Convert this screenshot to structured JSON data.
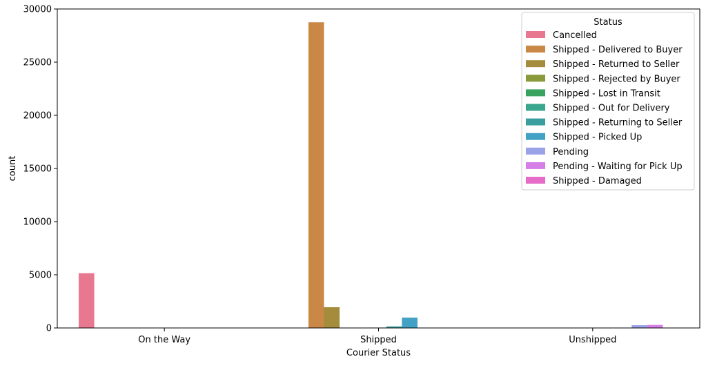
{
  "chart_data": {
    "type": "bar",
    "title": "",
    "xlabel": "Courier Status",
    "ylabel": "count",
    "ylim": [
      0,
      30000
    ],
    "yticks": [
      0,
      5000,
      10000,
      15000,
      20000,
      25000,
      30000
    ],
    "categories": [
      "On the Way",
      "Shipped",
      "Unshipped"
    ],
    "grid": false,
    "legend": {
      "title": "Status",
      "placement": "top-right"
    },
    "series": [
      {
        "name": "Cancelled",
        "color": "#e8788f",
        "values": [
          5150,
          0,
          0
        ]
      },
      {
        "name": "Shipped - Delivered to Buyer",
        "color": "#c98845",
        "values": [
          0,
          28750,
          0
        ]
      },
      {
        "name": "Shipped - Returned to Seller",
        "color": "#a58c3c",
        "values": [
          0,
          1950,
          0
        ]
      },
      {
        "name": "Shipped - Rejected by Buyer",
        "color": "#8a9a3b",
        "values": [
          0,
          10,
          0
        ]
      },
      {
        "name": "Shipped - Lost in Transit",
        "color": "#3aa35f",
        "values": [
          0,
          5,
          0
        ]
      },
      {
        "name": "Shipped - Out for Delivery",
        "color": "#3aa68e",
        "values": [
          0,
          35,
          0
        ]
      },
      {
        "name": "Shipped - Returning to Seller",
        "color": "#3a9ea0",
        "values": [
          0,
          145,
          0
        ]
      },
      {
        "name": "Shipped - Picked Up",
        "color": "#43a1c6",
        "values": [
          0,
          975,
          0
        ]
      },
      {
        "name": "Pending",
        "color": "#9ba2e8",
        "values": [
          0,
          0,
          260
        ]
      },
      {
        "name": "Pending - Waiting for Pick Up",
        "color": "#d47ee6",
        "values": [
          0,
          0,
          285
        ]
      },
      {
        "name": "Shipped - Damaged",
        "color": "#e56cc7",
        "values": [
          0,
          1,
          0
        ]
      }
    ]
  }
}
